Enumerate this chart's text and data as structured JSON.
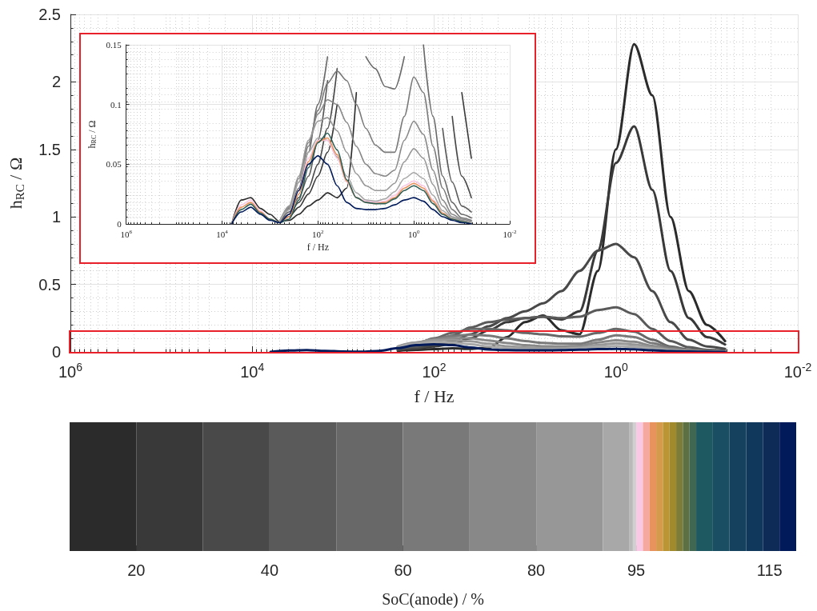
{
  "chart_data": [
    {
      "type": "line",
      "xlabel": "f / Hz",
      "ylabel": "h$_{RC}$ / Ω",
      "log": "x",
      "grid": true,
      "xlim": [
        1000000,
        0.01
      ],
      "xticks": [
        {
          "value": 1000000,
          "label": "10$^{6}$"
        },
        {
          "value": 10000,
          "label": "10$^{4}$"
        },
        {
          "value": 100,
          "label": "10$^{2}$"
        },
        {
          "value": 1,
          "label": "10$^{0}$"
        },
        {
          "value": 0.01,
          "label": "10$^{-2}$"
        }
      ],
      "ylim": [
        0,
        2.5
      ],
      "yticks": [
        0,
        0.5,
        1,
        1.5,
        2,
        2.5
      ],
      "x": [
        6310,
        3981,
        2512,
        1585,
        1000,
        631,
        398,
        251,
        158,
        100,
        63.1,
        39.8,
        25.1,
        15.8,
        10,
        6.31,
        3.98,
        2.51,
        1.58,
        1,
        0.631,
        0.398,
        0.251,
        0.158,
        0.1,
        0.0631
      ],
      "series": [
        {
          "color": "#2b2b2b",
          "values": [
            null,
            null,
            null,
            null,
            null,
            null,
            null,
            0.008,
            0.015,
            0.02,
            0.026,
            0.022,
            0.03,
            0.11,
            0.22,
            0.27,
            0.16,
            0.13,
            0.6,
            1.5,
            2.28,
            1.9,
            1.0,
            0.45,
            0.2,
            0.08
          ]
        },
        {
          "color": "#393939",
          "values": [
            null,
            null,
            null,
            null,
            null,
            null,
            null,
            0.014,
            0.025,
            0.04,
            0.06,
            0.1,
            0.16,
            0.22,
            0.25,
            0.26,
            0.24,
            0.3,
            0.75,
            1.4,
            1.67,
            1.2,
            0.6,
            0.25,
            0.11,
            0.055
          ]
        },
        {
          "color": "#494949",
          "values": [
            null,
            null,
            null,
            null,
            null,
            null,
            null,
            0.018,
            0.03,
            0.05,
            0.08,
            0.13,
            0.19,
            0.25,
            0.3,
            0.36,
            0.45,
            0.6,
            0.75,
            0.8,
            0.7,
            0.45,
            0.22,
            0.09,
            0.04,
            0.022
          ]
        },
        {
          "color": "#5a5a5a",
          "values": [
            null,
            null,
            null,
            null,
            null,
            null,
            null,
            0.022,
            0.04,
            0.07,
            0.12,
            0.18,
            0.22,
            0.24,
            0.25,
            0.26,
            0.25,
            0.26,
            0.31,
            0.33,
            0.28,
            0.17,
            0.08,
            0.035,
            0.015,
            0.01
          ]
        },
        {
          "color": "#686868",
          "values": [
            null,
            null,
            null,
            null,
            null,
            null,
            null,
            0.03,
            0.06,
            0.1,
            0.14,
            0.17,
            0.17,
            0.16,
            0.14,
            0.13,
            0.115,
            0.113,
            0.14,
            0.17,
            0.15,
            0.09,
            0.04,
            0.018,
            0.008,
            0.005
          ]
        },
        {
          "color": "#797979",
          "values": [
            null,
            null,
            null,
            null,
            null,
            null,
            null,
            0.035,
            0.065,
            0.095,
            0.118,
            0.128,
            0.12,
            0.1,
            0.08,
            0.066,
            0.06,
            0.06,
            0.09,
            0.123,
            0.11,
            0.065,
            0.03,
            0.012,
            0.005,
            0.003
          ]
        },
        {
          "color": "#888888",
          "values": [
            null,
            null,
            null,
            null,
            null,
            null,
            null,
            0.038,
            0.068,
            0.092,
            0.104,
            0.1,
            0.085,
            0.065,
            0.05,
            0.042,
            0.04,
            0.045,
            0.07,
            0.086,
            0.075,
            0.045,
            0.02,
            0.008,
            0.004,
            0.002
          ]
        },
        {
          "color": "#979797",
          "values": [
            null,
            null,
            null,
            null,
            null,
            null,
            null,
            0.04,
            0.07,
            0.086,
            0.089,
            0.078,
            0.06,
            0.042,
            0.032,
            0.028,
            0.028,
            0.034,
            0.052,
            0.063,
            0.055,
            0.033,
            0.015,
            0.006,
            0.003,
            0.001
          ]
        },
        {
          "color": "#a8a8a8",
          "values": [
            null,
            null,
            null,
            null,
            null,
            null,
            null,
            0.035,
            0.06,
            0.072,
            0.07,
            0.056,
            0.04,
            0.026,
            0.02,
            0.019,
            0.021,
            0.027,
            0.038,
            0.043,
            0.038,
            0.024,
            0.011,
            0.005,
            0.002,
            0.001
          ]
        },
        {
          "color": "#001a5a",
          "values": [
            0,
            0.01,
            0.014,
            0.008,
            0.003,
            0.001,
            0.008,
            0.028,
            0.05,
            0.057,
            0.05,
            0.032,
            0.018,
            0.013,
            0.012,
            0.012,
            0.013,
            0.016,
            0.02,
            0.022,
            0.019,
            0.012,
            0.006,
            0.003,
            0.001,
            0
          ]
        }
      ]
    },
    {
      "type": "line",
      "xlabel": "f / Hz",
      "ylabel": "h$_{RC}$ / Ω",
      "log": "x",
      "grid": true,
      "xlim": [
        1000000,
        0.01
      ],
      "xticks": [
        {
          "value": 1000000,
          "label": "10$^{6}$"
        },
        {
          "value": 10000,
          "label": "10$^{4}$"
        },
        {
          "value": 100,
          "label": "10$^{2}$"
        },
        {
          "value": 1,
          "label": "10$^{0}$"
        },
        {
          "value": 0.01,
          "label": "10$^{-2}$"
        }
      ],
      "ylim": [
        0,
        0.15
      ],
      "yticks": [
        0,
        0.05,
        0.1,
        0.15
      ],
      "x": [
        6310,
        3981,
        2512,
        1585,
        1000,
        631,
        398,
        251,
        158,
        100,
        63.1,
        39.8,
        25.1,
        15.8,
        10,
        6.31,
        3.98,
        2.51,
        1.58,
        1,
        0.631,
        0.398,
        0.251,
        0.158,
        0.1,
        0.0631
      ],
      "series": [
        {
          "color": "#2b2b2b",
          "values": [
            0,
            0.02,
            0.022,
            0.013,
            0.008,
            0.002,
            0.003,
            0.008,
            0.015,
            0.02,
            0.026,
            0.022,
            0.03,
            0.11,
            null,
            null,
            null,
            null,
            null,
            null,
            null,
            null,
            null,
            null,
            null,
            null
          ]
        },
        {
          "color": "#393939",
          "values": [
            null,
            null,
            null,
            null,
            null,
            0.002,
            0.006,
            0.014,
            0.025,
            0.04,
            0.06,
            0.1,
            null,
            null,
            null,
            null,
            null,
            null,
            null,
            null,
            null,
            null,
            null,
            null,
            0.11,
            0.055
          ]
        },
        {
          "color": "#494949",
          "values": [
            null,
            null,
            null,
            null,
            null,
            0.002,
            0.008,
            0.018,
            0.03,
            0.05,
            0.08,
            0.13,
            null,
            null,
            null,
            null,
            null,
            null,
            null,
            null,
            null,
            null,
            null,
            0.09,
            0.04,
            0.022
          ]
        },
        {
          "color": "#5a5a5a",
          "values": [
            null,
            null,
            null,
            null,
            null,
            0.002,
            0.01,
            0.022,
            0.04,
            0.07,
            0.12,
            null,
            null,
            null,
            null,
            null,
            null,
            null,
            null,
            null,
            null,
            null,
            0.08,
            0.035,
            0.015,
            0.01
          ]
        },
        {
          "color": "#686868",
          "values": [
            null,
            null,
            null,
            null,
            null,
            0.002,
            0.012,
            0.03,
            0.06,
            0.1,
            0.14,
            null,
            null,
            null,
            0.14,
            0.13,
            0.115,
            0.113,
            0.14,
            null,
            0.15,
            0.09,
            0.04,
            0.018,
            0.008,
            0.005
          ]
        },
        {
          "color": "#797979",
          "values": [
            null,
            null,
            null,
            null,
            null,
            0.002,
            0.013,
            0.035,
            0.065,
            0.095,
            0.118,
            0.128,
            0.12,
            0.1,
            0.08,
            0.066,
            0.06,
            0.06,
            0.09,
            0.123,
            0.11,
            0.065,
            0.03,
            0.012,
            0.005,
            0.003
          ]
        },
        {
          "color": "#888888",
          "values": [
            null,
            null,
            null,
            null,
            null,
            0.002,
            0.014,
            0.038,
            0.068,
            0.092,
            0.104,
            0.1,
            0.085,
            0.065,
            0.05,
            0.042,
            0.04,
            0.045,
            0.07,
            0.086,
            0.075,
            0.045,
            0.02,
            0.008,
            0.004,
            0.002
          ]
        },
        {
          "color": "#979797",
          "values": [
            null,
            null,
            null,
            null,
            null,
            0.002,
            0.015,
            0.04,
            0.07,
            0.086,
            0.089,
            0.078,
            0.06,
            0.042,
            0.032,
            0.028,
            0.028,
            0.034,
            0.052,
            0.063,
            0.055,
            0.033,
            0.015,
            0.006,
            0.003,
            0.001
          ]
        },
        {
          "color": "#a8a8a8",
          "values": [
            null,
            null,
            null,
            null,
            null,
            0.002,
            0.012,
            0.035,
            0.06,
            0.072,
            0.07,
            0.056,
            0.04,
            0.026,
            0.02,
            0.019,
            0.021,
            0.027,
            0.038,
            0.043,
            0.038,
            0.024,
            0.011,
            0.005,
            0.002,
            0.001
          ]
        },
        {
          "color": "#f9c8e4",
          "values": [
            0,
            0.016,
            0.02,
            0.011,
            0.004,
            0.001,
            0.008,
            0.028,
            0.055,
            0.07,
            0.07,
            0.055,
            0.035,
            0.022,
            0.019,
            0.018,
            0.019,
            0.024,
            0.032,
            0.036,
            0.032,
            0.02,
            0.009,
            0.004,
            0.002,
            0
          ]
        },
        {
          "color": "#e8925e",
          "values": [
            0,
            0.014,
            0.018,
            0.01,
            0.004,
            0.001,
            0.006,
            0.025,
            0.052,
            0.069,
            0.072,
            0.058,
            0.036,
            0.022,
            0.018,
            0.017,
            0.018,
            0.022,
            0.03,
            0.034,
            0.03,
            0.019,
            0.009,
            0.004,
            0.002,
            0
          ]
        },
        {
          "color": "#2f6058",
          "values": [
            0,
            0.012,
            0.0165,
            0.009,
            0.004,
            0.001,
            0.004,
            0.02,
            0.047,
            0.068,
            0.076,
            0.062,
            0.037,
            0.022,
            0.018,
            0.017,
            0.017,
            0.021,
            0.028,
            0.032,
            0.028,
            0.017,
            0.008,
            0.004,
            0.002,
            0
          ]
        },
        {
          "color": "#001a5a",
          "values": [
            0,
            0.01,
            0.014,
            0.008,
            0.003,
            0.001,
            0.008,
            0.028,
            0.05,
            0.057,
            0.05,
            0.032,
            0.018,
            0.013,
            0.012,
            0.012,
            0.013,
            0.016,
            0.02,
            0.022,
            0.019,
            0.012,
            0.006,
            0.003,
            0.001,
            0
          ]
        }
      ]
    },
    {
      "type": "bar",
      "orientation": "horizontal",
      "xlabel": "SoC(anode) / %",
      "xlim": [
        10,
        119
      ],
      "xticks": [
        20,
        40,
        60,
        80,
        95,
        115
      ],
      "categories": [
        null
      ],
      "series": [
        {
          "color": "#2b2b2b",
          "base": [
            10
          ],
          "values": [
            10
          ]
        },
        {
          "color": "#393939",
          "base": [
            20
          ],
          "values": [
            10
          ]
        },
        {
          "color": "#494949",
          "base": [
            30
          ],
          "values": [
            10
          ]
        },
        {
          "color": "#5a5a5a",
          "base": [
            40
          ],
          "values": [
            10
          ]
        },
        {
          "color": "#686868",
          "base": [
            50
          ],
          "values": [
            10
          ]
        },
        {
          "color": "#797979",
          "base": [
            60
          ],
          "values": [
            10
          ]
        },
        {
          "color": "#888888",
          "base": [
            70
          ],
          "values": [
            10
          ]
        },
        {
          "color": "#979797",
          "base": [
            80
          ],
          "values": [
            10
          ]
        },
        {
          "color": "#a8a8a8",
          "base": [
            90
          ],
          "values": [
            4
          ]
        },
        {
          "color": "#b9b9b9",
          "base": [
            94
          ],
          "values": [
            0.5
          ]
        },
        {
          "color": "#d0d0d0",
          "base": [
            94.5
          ],
          "values": [
            0.5
          ]
        },
        {
          "color": "#f9c8e4",
          "base": [
            95
          ],
          "values": [
            1
          ]
        },
        {
          "color": "#f5a8a0",
          "base": [
            96
          ],
          "values": [
            1
          ]
        },
        {
          "color": "#e8925e",
          "base": [
            97
          ],
          "values": [
            1
          ]
        },
        {
          "color": "#d69a4c",
          "base": [
            98
          ],
          "values": [
            1
          ]
        },
        {
          "color": "#bb9533",
          "base": [
            99
          ],
          "values": [
            1
          ]
        },
        {
          "color": "#a08a2c",
          "base": [
            100
          ],
          "values": [
            1
          ]
        },
        {
          "color": "#7d7c38",
          "base": [
            101
          ],
          "values": [
            1
          ]
        },
        {
          "color": "#5c7044",
          "base": [
            102
          ],
          "values": [
            1
          ]
        },
        {
          "color": "#3f6752",
          "base": [
            103
          ],
          "values": [
            1
          ]
        },
        {
          "color": "#1e5860",
          "base": [
            104
          ],
          "values": [
            2.5
          ]
        },
        {
          "color": "#1a4e62",
          "base": [
            106.5
          ],
          "values": [
            2.5
          ]
        },
        {
          "color": "#15405e",
          "base": [
            109
          ],
          "values": [
            2.5
          ]
        },
        {
          "color": "#10375c",
          "base": [
            111.5
          ],
          "values": [
            2.5
          ]
        },
        {
          "color": "#0e2b58",
          "base": [
            114
          ],
          "values": [
            2.5
          ]
        },
        {
          "color": "#001a5a",
          "base": [
            116.5
          ],
          "values": [
            2.5
          ]
        }
      ]
    }
  ]
}
